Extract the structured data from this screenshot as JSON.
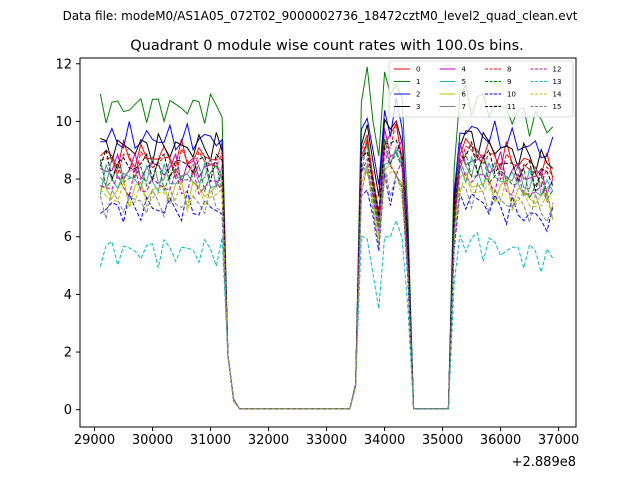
{
  "chart_data": {
    "type": "line",
    "suptitle": "Data file: modeM0/AS1A05_072T02_9000002736_18472cztM0_level2_quad_clean.evt",
    "title": "Quadrant 0 module wise count rates with 100.0s bins.",
    "xlabel": "",
    "ylabel": "",
    "x_offset_label": "+2.889e8",
    "xlim": [
      28750,
      37300
    ],
    "ylim": [
      -0.6,
      12.2
    ],
    "xticks": [
      29000,
      30000,
      31000,
      32000,
      33000,
      34000,
      35000,
      36000,
      37000
    ],
    "yticks": [
      0,
      2,
      4,
      6,
      8,
      10,
      12
    ],
    "grid": false,
    "legend_position": "top-right",
    "x": [
      29100,
      29200,
      29300,
      29400,
      29500,
      29600,
      29700,
      29800,
      29900,
      30000,
      30100,
      30200,
      30300,
      30400,
      30500,
      30600,
      30700,
      30800,
      30900,
      31000,
      31100,
      31200,
      31300,
      31400,
      31500,
      31600,
      31700,
      31800,
      31900,
      32000,
      32100,
      32200,
      32300,
      32400,
      32500,
      32600,
      32700,
      32800,
      32900,
      33000,
      33100,
      33200,
      33300,
      33400,
      33500,
      33600,
      33700,
      33800,
      33900,
      34000,
      34100,
      34200,
      34300,
      34400,
      34500,
      34600,
      34700,
      34800,
      34900,
      35000,
      35100,
      35200,
      35300,
      35400,
      35500,
      35600,
      35700,
      35800,
      35900,
      36000,
      36100,
      36200,
      36300,
      36400,
      36500,
      36600,
      36700,
      36800,
      36900
    ],
    "series": [
      {
        "name": "0",
        "color": "#ff0000",
        "dash": "solid",
        "base": 8.8,
        "end": 8.3,
        "dip": 6.8
      },
      {
        "name": "1",
        "color": "#008000",
        "dash": "solid",
        "base": 10.5,
        "end": 9.8,
        "dip": 8.8
      },
      {
        "name": "2",
        "color": "#0000ff",
        "dash": "solid",
        "base": 9.4,
        "end": 8.9,
        "dip": 7.8
      },
      {
        "name": "3",
        "color": "#000000",
        "dash": "solid",
        "base": 9.1,
        "end": 8.5,
        "dip": 7.4
      },
      {
        "name": "4",
        "color": "#bf00bf",
        "dash": "solid",
        "base": 8.4,
        "end": 7.9,
        "dip": 6.6
      },
      {
        "name": "5",
        "color": "#20b2aa",
        "dash": "solid",
        "base": 8.0,
        "end": 7.6,
        "dip": 6.3
      },
      {
        "name": "6",
        "color": "#bfbf00",
        "dash": "solid",
        "base": 7.6,
        "end": 7.2,
        "dip": 6.0
      },
      {
        "name": "7",
        "color": "#808080",
        "dash": "solid",
        "base": 8.2,
        "end": 7.7,
        "dip": 6.5
      },
      {
        "name": "8",
        "color": "#ff0000",
        "dash": "dashed",
        "base": 8.6,
        "end": 8.0,
        "dip": 6.9
      },
      {
        "name": "9",
        "color": "#008000",
        "dash": "dashed",
        "base": 8.1,
        "end": 7.6,
        "dip": 6.4
      },
      {
        "name": "10",
        "color": "#0000ff",
        "dash": "dashed",
        "base": 7.0,
        "end": 6.5,
        "dip": 5.5
      },
      {
        "name": "11",
        "color": "#000000",
        "dash": "dashed",
        "base": 8.5,
        "end": 8.0,
        "dip": 6.7
      },
      {
        "name": "12",
        "color": "#bf00bf",
        "dash": "dashed",
        "base": 7.8,
        "end": 7.4,
        "dip": 6.2
      },
      {
        "name": "13",
        "color": "#00bfbf",
        "dash": "dashed",
        "base": 5.5,
        "end": 5.2,
        "dip": 3.5
      },
      {
        "name": "14",
        "color": "#bfbf00",
        "dash": "dashed",
        "base": 7.4,
        "end": 7.0,
        "dip": 5.8
      },
      {
        "name": "15",
        "color": "#808080",
        "dash": "dashed",
        "base": 7.2,
        "end": 6.8,
        "dip": 5.7
      }
    ]
  }
}
